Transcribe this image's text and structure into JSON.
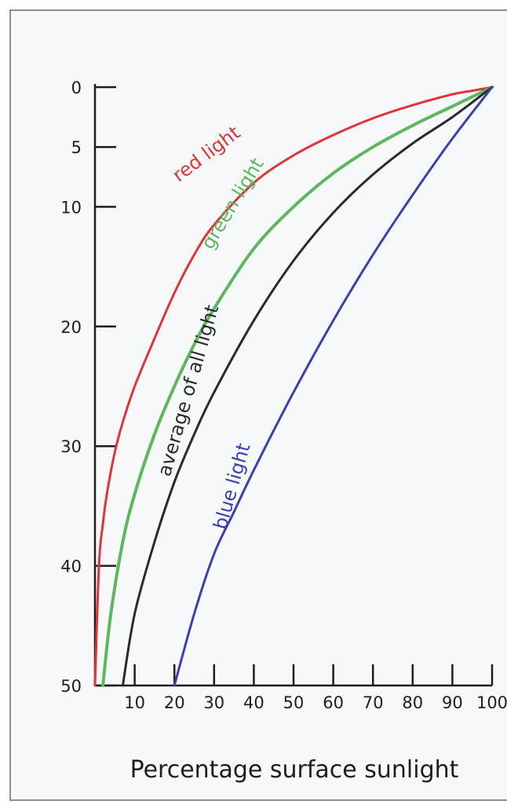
{
  "chart_data": {
    "type": "line",
    "title": "",
    "xlabel": "Percentage surface sunlight",
    "ylabel": "",
    "xlim": [
      0,
      100
    ],
    "ylim": [
      0,
      50
    ],
    "y_inverted": true,
    "grid": false,
    "legend": "inline labels",
    "x_ticks": [
      10,
      20,
      30,
      40,
      50,
      60,
      70,
      80,
      90,
      100
    ],
    "y_ticks": [
      0,
      5,
      10,
      20,
      30,
      40,
      50
    ],
    "series": [
      {
        "name": "red light",
        "color": "#e0343a",
        "points": [
          [
            100,
            0
          ],
          [
            95,
            0.3
          ],
          [
            90,
            0.6
          ],
          [
            80,
            1.5
          ],
          [
            70,
            2.6
          ],
          [
            60,
            4.0
          ],
          [
            50,
            5.7
          ],
          [
            40,
            8.0
          ],
          [
            30,
            11.5
          ],
          [
            25,
            14
          ],
          [
            20,
            17.2
          ],
          [
            15,
            21
          ],
          [
            10,
            25
          ],
          [
            7,
            28
          ],
          [
            5,
            30.5
          ],
          [
            3,
            34
          ],
          [
            2,
            36.5
          ],
          [
            1,
            40
          ],
          [
            0,
            50
          ]
        ]
      },
      {
        "name": "green light",
        "color": "#5cb85c",
        "points": [
          [
            100,
            0
          ],
          [
            90,
            1.6
          ],
          [
            80,
            3.2
          ],
          [
            70,
            5.0
          ],
          [
            60,
            7.2
          ],
          [
            50,
            10.0
          ],
          [
            40,
            13.5
          ],
          [
            30,
            18.5
          ],
          [
            25,
            21.5
          ],
          [
            20,
            25
          ],
          [
            15,
            29
          ],
          [
            10,
            34
          ],
          [
            7,
            38
          ],
          [
            4,
            44
          ],
          [
            2,
            50
          ]
        ]
      },
      {
        "name": "average of all light",
        "color": "#2b2b2b",
        "points": [
          [
            100,
            0
          ],
          [
            90,
            2.5
          ],
          [
            80,
            4.7
          ],
          [
            70,
            7.3
          ],
          [
            60,
            10.5
          ],
          [
            50,
            14.5
          ],
          [
            40,
            19.5
          ],
          [
            30,
            25.5
          ],
          [
            25,
            29
          ],
          [
            20,
            33
          ],
          [
            15,
            38
          ],
          [
            10,
            44
          ],
          [
            7,
            50
          ]
        ]
      },
      {
        "name": "blue light",
        "color": "#3b3fb0",
        "points": [
          [
            100,
            0
          ],
          [
            90,
            4.3
          ],
          [
            80,
            9.0
          ],
          [
            70,
            14.0
          ],
          [
            60,
            19.5
          ],
          [
            50,
            25.5
          ],
          [
            40,
            32
          ],
          [
            35,
            35.5
          ],
          [
            30,
            39
          ],
          [
            25,
            44
          ],
          [
            20,
            50
          ]
        ]
      }
    ],
    "y_tick_labels": [
      "0",
      "5",
      "10",
      "20",
      "30",
      "40",
      "50"
    ],
    "x_tick_labels": [
      "10",
      "20",
      "30",
      "40",
      "50",
      "60",
      "70",
      "80",
      "90",
      "100"
    ]
  }
}
